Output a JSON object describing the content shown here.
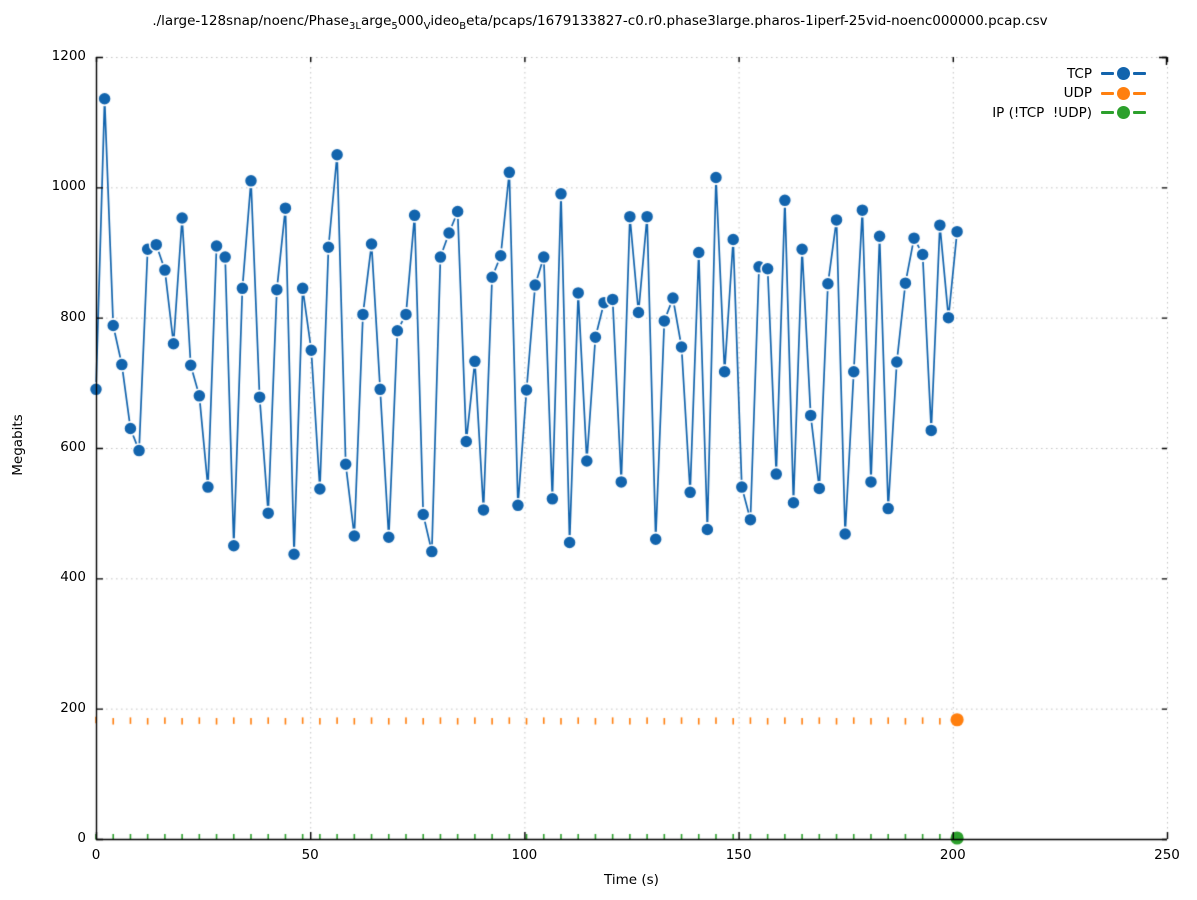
{
  "title": {
    "segments": [
      {
        "text": "./large-128snap/noenc/Phase",
        "sub": false
      },
      {
        "text": "3",
        "sub": true
      },
      {
        "text": "L",
        "sub": true
      },
      {
        "text": "arge",
        "sub": false
      },
      {
        "text": "5",
        "sub": true
      },
      {
        "text": "000",
        "sub": false
      },
      {
        "text": "V",
        "sub": true
      },
      {
        "text": "ideo",
        "sub": false
      },
      {
        "text": "B",
        "sub": true
      },
      {
        "text": "eta/pcaps/1679133827-c0.r0.phase3large.pharos-1iperf-25vid-noenc000000.pcap.csv",
        "sub": false
      }
    ]
  },
  "chart_data": {
    "type": "line",
    "title": "./large-128snap/noenc/Phase3Large5000VideoBeta/pcaps/1679133827-c0.r0.phase3large.pharos-1iperf-25vid-noenc000000.pcap.csv",
    "xlabel": "Time (s)",
    "ylabel": "Megabits",
    "xlim": [
      0,
      250
    ],
    "ylim": [
      0,
      1200
    ],
    "x_ticks": [
      0,
      50,
      100,
      150,
      200,
      250
    ],
    "y_ticks": [
      0,
      200,
      400,
      600,
      800,
      1000,
      1200
    ],
    "grid": "dotted",
    "legend_position": "top-right",
    "x_start": 0,
    "x_step": 2.01,
    "series": [
      {
        "name": "TCP",
        "color": "#1264ad",
        "marker": "large-circle-white-edge",
        "style": "linespoints",
        "values": [
          690,
          1136,
          788,
          728,
          630,
          596,
          905,
          912,
          873,
          760,
          953,
          727,
          680,
          540,
          910,
          893,
          450,
          845,
          1010,
          678,
          500,
          843,
          968,
          437,
          845,
          750,
          537,
          908,
          1050,
          575,
          465,
          805,
          913,
          690,
          463,
          780,
          805,
          957,
          498,
          441,
          893,
          930,
          963,
          610,
          733,
          505,
          862,
          895,
          1023,
          512,
          689,
          850,
          893,
          522,
          990,
          455,
          838,
          580,
          770,
          823,
          828,
          548,
          955,
          808,
          955,
          460,
          795,
          830,
          755,
          532,
          900,
          475,
          1015,
          717,
          920,
          540,
          490,
          878,
          875,
          560,
          980,
          516,
          905,
          650,
          538,
          852,
          950,
          468,
          717,
          965,
          548,
          925,
          507,
          732,
          853,
          922,
          897,
          627,
          942,
          800,
          932
        ]
      },
      {
        "name": "UDP",
        "color": "#ff7f0e",
        "marker": "small-tick",
        "style": "points-with-end-dot",
        "values": [
          183,
          186,
          181,
          185,
          182,
          186,
          181,
          185,
          182,
          186,
          181,
          185,
          182,
          186,
          181,
          185,
          182,
          186,
          181,
          185,
          182,
          186,
          181,
          185,
          182,
          186,
          181,
          185,
          182,
          186,
          181,
          185,
          182,
          186,
          181,
          185,
          182,
          186,
          181,
          185,
          182,
          186,
          181,
          185,
          182,
          186,
          181,
          185,
          182,
          186,
          181,
          185,
          182,
          186,
          181,
          185,
          182,
          186,
          181,
          185,
          182,
          186,
          181,
          185,
          182,
          186,
          181,
          185,
          182,
          186,
          181,
          185,
          182,
          186,
          181,
          185,
          182,
          186,
          181,
          185,
          182,
          186,
          181,
          185,
          182,
          186,
          181,
          185,
          182,
          186,
          181,
          185,
          182,
          186,
          181,
          185,
          182,
          186,
          181,
          185,
          183
        ]
      },
      {
        "name": "IP (!TCP  !UDP)",
        "color": "#2ca02c",
        "marker": "small-tick",
        "style": "points-with-end-dot",
        "values": [
          0,
          0,
          0,
          0,
          0,
          0,
          0,
          0,
          0,
          0,
          0,
          0,
          0,
          0,
          0,
          0,
          0,
          0,
          0,
          0,
          0,
          0,
          0,
          0,
          0,
          0,
          0,
          0,
          0,
          0,
          0,
          0,
          0,
          0,
          0,
          0,
          0,
          0,
          0,
          0,
          0,
          0,
          0,
          0,
          0,
          0,
          0,
          0,
          0,
          0,
          0,
          0,
          0,
          0,
          0,
          0,
          0,
          0,
          0,
          0,
          0,
          0,
          0,
          0,
          0,
          0,
          0,
          0,
          0,
          0,
          0,
          0,
          0,
          0,
          0,
          0,
          0,
          0,
          0,
          0,
          0,
          0,
          0,
          0,
          0,
          0,
          0,
          0,
          0,
          0,
          0,
          0,
          0,
          0,
          0,
          0,
          0,
          0,
          0,
          0,
          0
        ]
      }
    ]
  },
  "colors": {
    "grid": "#c4c4c4",
    "axis": "#000000",
    "text": "#000000",
    "background": "#ffffff"
  }
}
